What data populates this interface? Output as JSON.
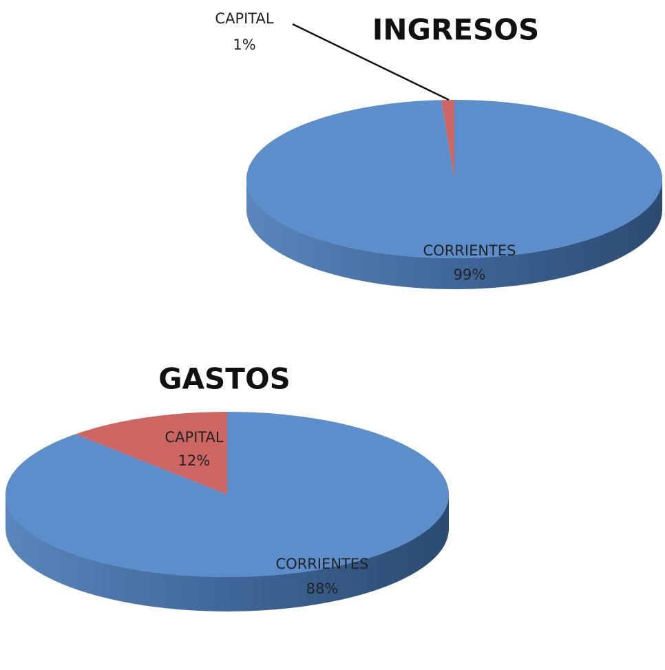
{
  "chart_data": [
    {
      "type": "pie",
      "title": "INGRESOS",
      "categories": [
        "CORRIENTES",
        "CAPITAL"
      ],
      "values": [
        99,
        1
      ],
      "value_labels": [
        "99%",
        "1%"
      ],
      "colors": [
        "#5b8ecb",
        "#cd6663"
      ]
    },
    {
      "type": "pie",
      "title": "GASTOS",
      "categories": [
        "CORRIENTES",
        "CAPITAL"
      ],
      "values": [
        88,
        12
      ],
      "value_labels": [
        "88%",
        "12%"
      ],
      "colors": [
        "#5b8ecb",
        "#cd6663"
      ]
    }
  ]
}
